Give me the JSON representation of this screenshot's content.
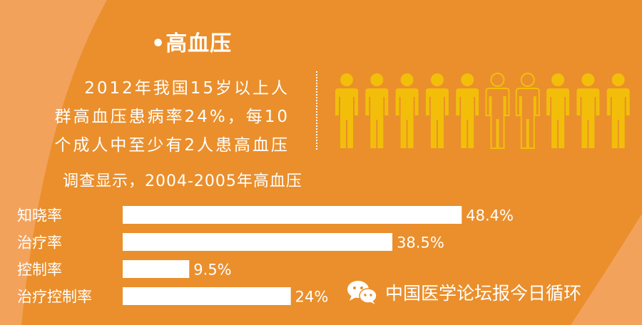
{
  "header": {
    "bullet": "•",
    "title": "高血压"
  },
  "stat": {
    "lines": [
      "2012年我国15岁以上人",
      "群高血压患病率24%，每10",
      "个成人中至少有2人患高血压"
    ],
    "figures_total": 10,
    "figures_highlighted": [
      6,
      7
    ]
  },
  "survey": {
    "text": "调查显示，2004-2005年高血压"
  },
  "chart_data": {
    "type": "bar",
    "orientation": "horizontal",
    "categories": [
      "知晓率",
      "治疗率",
      "控制率",
      "治疗控制率"
    ],
    "values": [
      48.4,
      38.5,
      9.5,
      24
    ],
    "value_labels": [
      "48.4%",
      "38.5%",
      "9.5%",
      "24%"
    ],
    "unit": "%",
    "grid": false,
    "bar_color": "#ffffff"
  },
  "watermark": {
    "icon": "wechat-icon",
    "text": "中国医学论坛报今日循环"
  },
  "colors": {
    "background": "#f3a25c",
    "panel": "#ea8f2c",
    "figure_fill": "#f2be0a",
    "text": "#ffffff"
  }
}
